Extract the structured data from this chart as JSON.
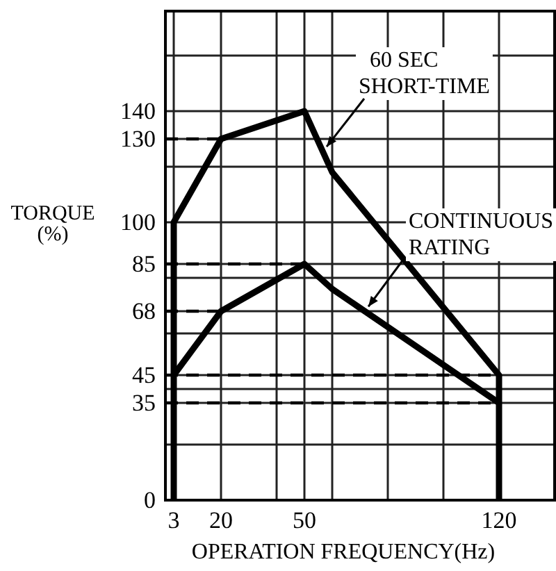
{
  "chart_data": {
    "type": "line",
    "xlabel": "OPERATION FREQUENCY(Hz)",
    "ylabel": "TORQUE\n(%)",
    "xlim": [
      0,
      140
    ],
    "ylim": [
      0,
      176
    ],
    "xticks": [
      3,
      20,
      {
        "value": 40,
        "label": null
      },
      50,
      {
        "value": 60,
        "label": null
      },
      {
        "value": 80,
        "label": null
      },
      {
        "value": 100,
        "label": null
      },
      120
    ],
    "yticks": [
      0,
      {
        "value": 20,
        "label": null
      },
      35,
      {
        "value": 40,
        "label": null
      },
      45,
      {
        "value": 60,
        "label": null
      },
      68,
      {
        "value": 80,
        "label": null
      },
      85,
      100,
      {
        "value": 120,
        "label": null
      },
      130,
      140,
      {
        "value": 160,
        "label": null
      }
    ],
    "grid": true,
    "marker": "none",
    "series": [
      {
        "name": "60 SEC\nSHORT-TIME",
        "color": "#000000",
        "x": [
          3,
          3,
          20,
          50,
          60,
          120,
          120
        ],
        "values": [
          0,
          100,
          130,
          140,
          118,
          45,
          0
        ]
      },
      {
        "name": "CONTINUOUS\nRATING",
        "color": "#000000",
        "x": [
          3,
          20,
          50,
          60,
          120
        ],
        "values": [
          45,
          68,
          85,
          76,
          35
        ]
      },
      {
        "color": "#000000",
        "line_style": "dashed",
        "x": [
          0,
          20
        ],
        "values": [
          130,
          130
        ]
      },
      {
        "color": "#000000",
        "line_style": "dashed",
        "x": [
          0,
          50
        ],
        "values": [
          85,
          85
        ]
      },
      {
        "color": "#000000",
        "line_style": "dashed",
        "x": [
          0,
          20
        ],
        "values": [
          68,
          68
        ]
      },
      {
        "color": "#000000",
        "line_style": "dashed",
        "x": [
          0,
          120
        ],
        "values": [
          45,
          45
        ]
      },
      {
        "color": "#000000",
        "line_style": "dashed",
        "x": [
          0,
          120
        ],
        "values": [
          35,
          35
        ]
      }
    ]
  }
}
